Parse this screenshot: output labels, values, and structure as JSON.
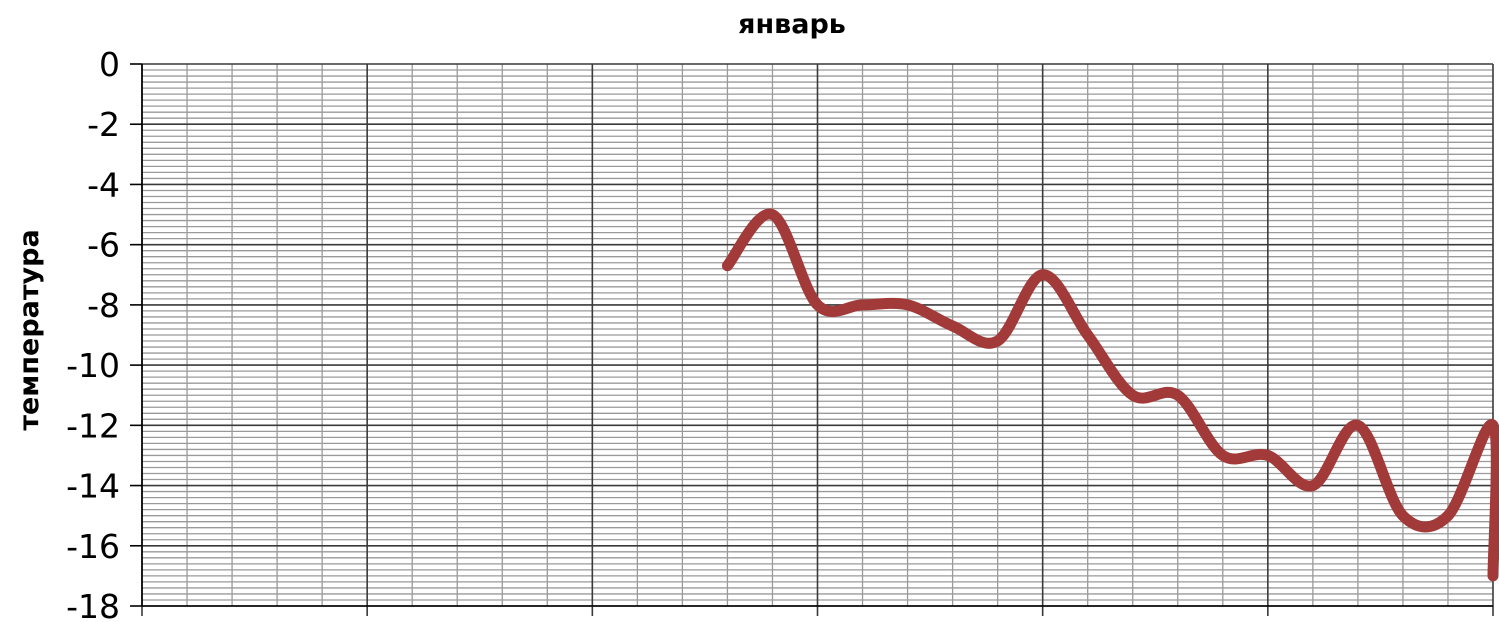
{
  "chart_data": {
    "type": "line",
    "title": "январь",
    "xlabel": "",
    "ylabel": "температура",
    "ylim": [
      -18,
      0
    ],
    "yticks": [
      "0",
      "-2",
      "-4",
      "-6",
      "-8",
      "-10",
      "-12",
      "-14",
      "-16",
      "-18"
    ],
    "xlim": [
      1,
      31
    ],
    "grid": true,
    "legend": "none",
    "smooth": true,
    "series": [
      {
        "color": "#a23a3a",
        "x": [
          14,
          15,
          16,
          17,
          18,
          19,
          20,
          21,
          22,
          23,
          24,
          25,
          26,
          27,
          28,
          29,
          30,
          31,
          31
        ],
        "y": [
          -6.7,
          -5,
          -8,
          -8,
          -8,
          -8.7,
          -9.2,
          -7,
          -9,
          -11,
          -11,
          -13,
          -13,
          -14,
          -12,
          -15,
          -15,
          -12,
          -17
        ]
      }
    ]
  }
}
